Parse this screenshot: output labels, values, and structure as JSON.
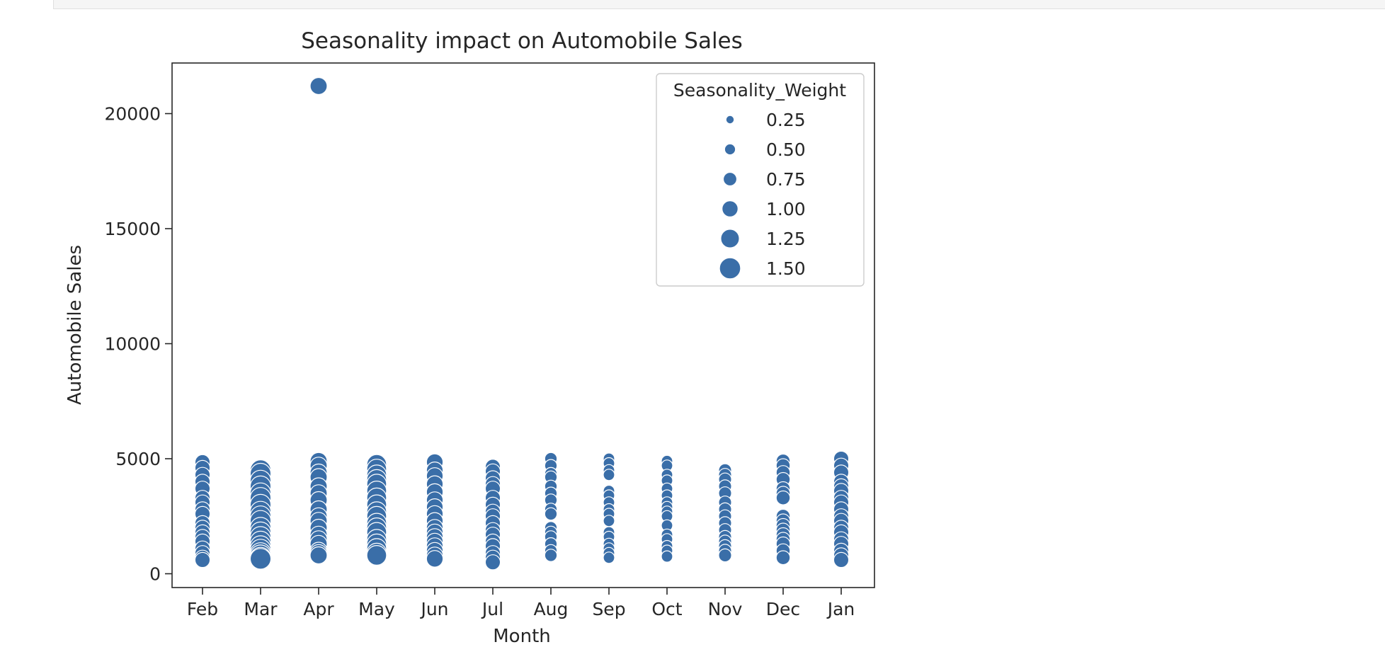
{
  "chart_data": {
    "type": "scatter",
    "title": "Seasonality impact on Automobile Sales",
    "xlabel": "Month",
    "ylabel": "Automobile Sales",
    "categories": [
      "Feb",
      "Mar",
      "Apr",
      "May",
      "Jun",
      "Jul",
      "Aug",
      "Sep",
      "Oct",
      "Nov",
      "Dec",
      "Jan"
    ],
    "y_ticks": [
      0,
      5000,
      10000,
      15000,
      20000
    ],
    "y_tick_labels": [
      "0",
      "5000",
      "10000",
      "15000",
      "20000"
    ],
    "ylim": [
      -600,
      22200
    ],
    "grid": false,
    "color": "#3a6ea8",
    "legend": {
      "title": "Seasonality_Weight",
      "placement": "top-right",
      "entries": [
        {
          "label": "0.25",
          "weight": 0.25
        },
        {
          "label": "0.50",
          "weight": 0.5
        },
        {
          "label": "0.75",
          "weight": 0.75
        },
        {
          "label": "1.00",
          "weight": 1.0
        },
        {
          "label": "1.25",
          "weight": 1.25
        },
        {
          "label": "1.50",
          "weight": 1.5
        }
      ]
    },
    "points": [
      {
        "month": "Feb",
        "weight": 0.9,
        "sales": [
          4850,
          4600,
          4300,
          4000,
          3700,
          3300,
          3100,
          2800,
          2600,
          2200,
          2000,
          1800,
          1600,
          1400,
          1100,
          900,
          700,
          600
        ]
      },
      {
        "month": "Mar",
        "weight": 1.45,
        "sales": [
          4500,
          4350,
          4050,
          3800,
          3500,
          3300,
          3000,
          2700,
          2500,
          2300,
          2000,
          1800,
          1600,
          1400,
          1200,
          1050,
          900,
          800,
          700,
          650
        ]
      },
      {
        "month": "Apr",
        "weight": 1.1,
        "sales": [
          21200,
          4900,
          4700,
          4400,
          4200,
          3800,
          3500,
          3200,
          2800,
          2500,
          2300,
          2000,
          1700,
          1500,
          1300,
          1000,
          900,
          800
        ]
      },
      {
        "month": "May",
        "weight": 1.35,
        "sales": [
          4750,
          4550,
          4300,
          4100,
          3900,
          3600,
          3300,
          3000,
          2700,
          2500,
          2200,
          2000,
          1800,
          1500,
          1300,
          1100,
          900,
          800
        ]
      },
      {
        "month": "Jun",
        "weight": 1.05,
        "sales": [
          4850,
          4500,
          4250,
          3900,
          3550,
          3200,
          2900,
          2600,
          2300,
          2000,
          1800,
          1600,
          1400,
          1200,
          1000,
          800,
          650
        ]
      },
      {
        "month": "Jul",
        "weight": 0.9,
        "sales": [
          4650,
          4450,
          4150,
          3900,
          3700,
          3300,
          3000,
          2700,
          2500,
          2200,
          1900,
          1700,
          1400,
          1200,
          900,
          700,
          500
        ]
      },
      {
        "month": "Aug",
        "weight": 0.65,
        "sales": [
          5000,
          4700,
          4350,
          4200,
          3800,
          3500,
          3200,
          2800,
          2600,
          2000,
          1800,
          1600,
          1300,
          1000,
          800
        ]
      },
      {
        "month": "Sep",
        "weight": 0.55,
        "sales": [
          5000,
          4800,
          4500,
          4300,
          3600,
          3400,
          3100,
          2800,
          2600,
          2300,
          1800,
          1600,
          1300,
          1100,
          900,
          700
        ]
      },
      {
        "month": "Oct",
        "weight": 0.55,
        "sales": [
          4900,
          4700,
          4300,
          4050,
          3700,
          3400,
          3100,
          2900,
          2700,
          2500,
          2100,
          1700,
          1500,
          1200,
          1000,
          750
        ]
      },
      {
        "month": "Nov",
        "weight": 0.7,
        "sales": [
          4500,
          4300,
          4100,
          3800,
          3500,
          3100,
          2800,
          2500,
          2200,
          1900,
          1600,
          1400,
          1200,
          1000,
          800
        ]
      },
      {
        "month": "Dec",
        "weight": 0.8,
        "sales": [
          4900,
          4700,
          4400,
          4100,
          3700,
          3500,
          3300,
          2500,
          2300,
          2100,
          1900,
          1700,
          1500,
          1300,
          1000,
          700
        ]
      },
      {
        "month": "Jan",
        "weight": 0.9,
        "sales": [
          5000,
          4700,
          4400,
          4000,
          3800,
          3600,
          3300,
          3100,
          2800,
          2500,
          2300,
          2000,
          1800,
          1500,
          1300,
          1000,
          800,
          600
        ]
      }
    ]
  }
}
